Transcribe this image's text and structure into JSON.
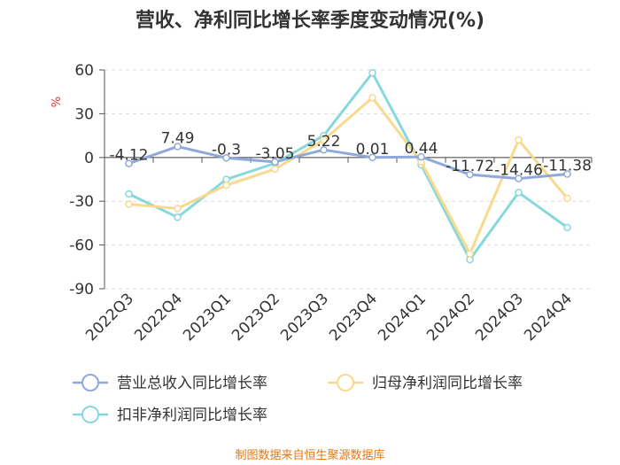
{
  "chart_data": {
    "type": "line",
    "title": "营收、净利同比增长率季度变动情况(%)",
    "ylabel": "%",
    "ylim": [
      -90,
      60
    ],
    "yticks": [
      60,
      30,
      0,
      -30,
      -60,
      -90
    ],
    "categories": [
      "2022Q3",
      "2022Q4",
      "2023Q1",
      "2023Q2",
      "2023Q3",
      "2023Q4",
      "2024Q1",
      "2024Q2",
      "2024Q3",
      "2024Q4"
    ],
    "series": [
      {
        "name": "营业总收入同比增长率",
        "color": "#8fa9d9",
        "values": [
          -4.12,
          7.49,
          -0.3,
          -3.05,
          5.22,
          0.01,
          0.44,
          -11.72,
          -14.46,
          -11.38
        ],
        "labels": [
          "-4.12",
          "7.49",
          "-0.3",
          "-3.05",
          "5.22",
          "0.01",
          "0.44",
          "-11.72",
          "-14.46",
          "-11.38"
        ]
      },
      {
        "name": "归母净利润同比增长率",
        "color": "#f8d98e",
        "values": [
          -32,
          -35,
          -19,
          -8,
          12,
          41,
          -3,
          -66,
          12,
          -28
        ]
      },
      {
        "name": "扣非净利润同比增长率",
        "color": "#86d8dd",
        "values": [
          -25,
          -41,
          -15,
          -4,
          15,
          58,
          -5,
          -70,
          -24,
          -48
        ]
      }
    ],
    "source": "制图数据来自恒生聚源数据库"
  }
}
